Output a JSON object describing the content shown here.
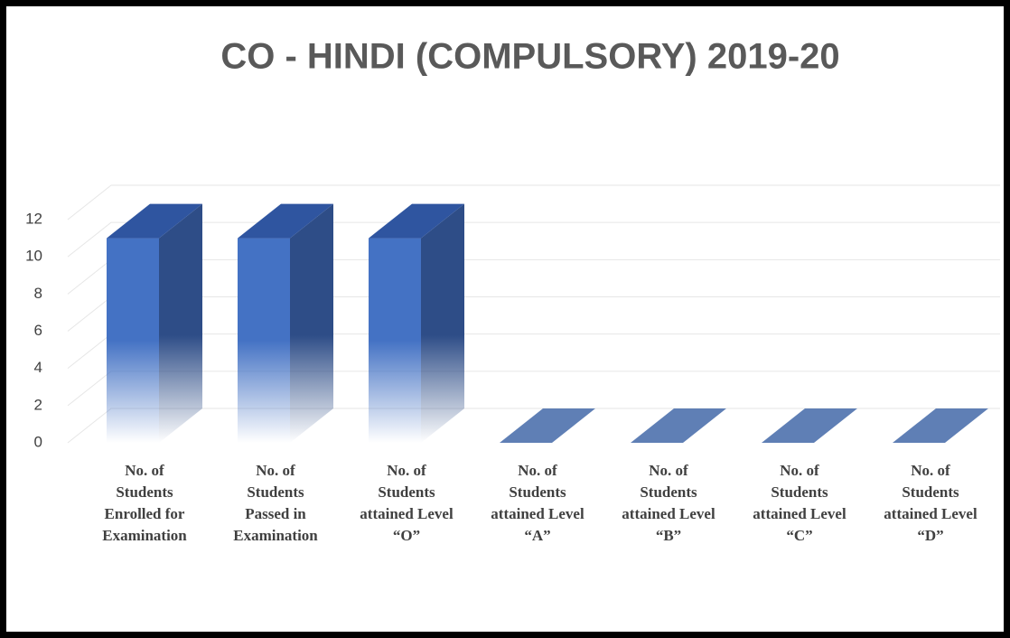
{
  "chart_data": {
    "type": "bar3d",
    "title": "CO - HINDI (COMPULSORY) 2019-20",
    "categories": [
      "No. of Students Enrolled for Examination",
      "No. of Students Passed in Examination",
      "No. of Students attained Level “O”",
      "No. of Students attained Level “A”",
      "No. of Students attained Level “B”",
      "No. of Students attained Level “C”",
      "No. of Students attained Level “D”"
    ],
    "values": [
      11,
      11,
      11,
      0,
      0,
      0,
      0
    ],
    "color": "#4472c4",
    "ylim": [
      0,
      12
    ],
    "yticks": [
      0,
      2,
      4,
      6,
      8,
      10,
      12
    ],
    "grid": true
  }
}
